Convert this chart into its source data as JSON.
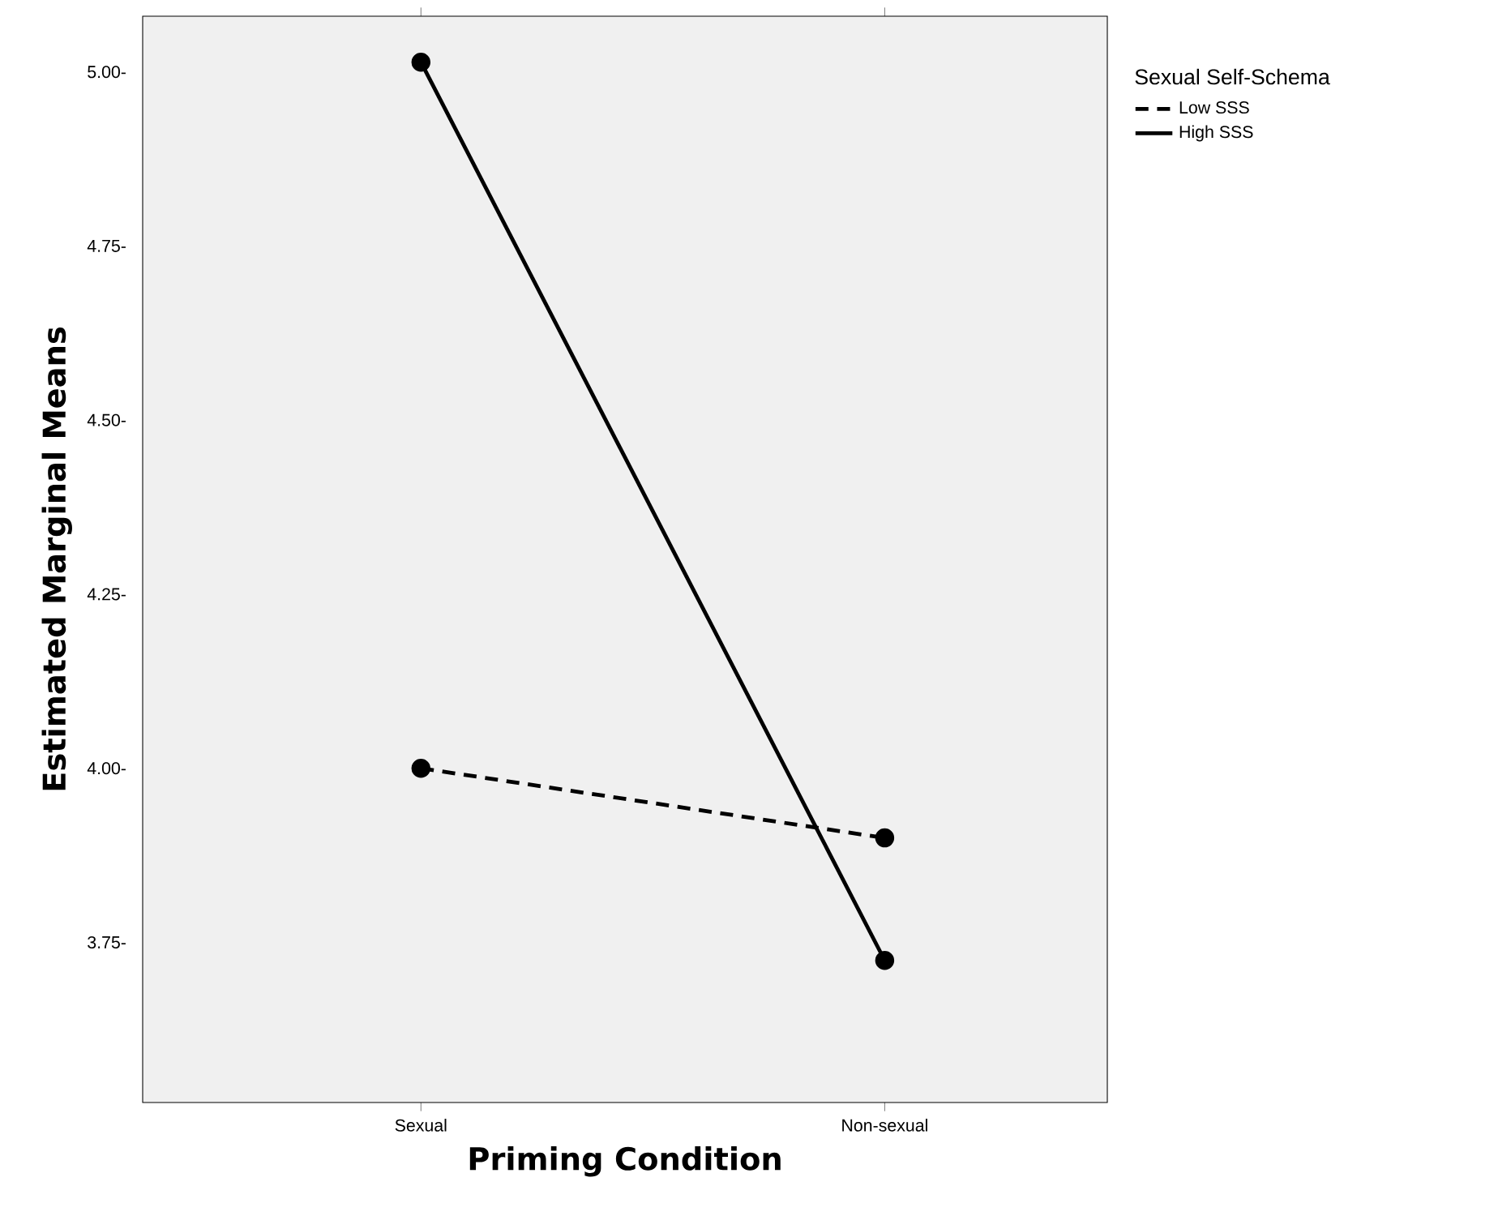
{
  "chart_data": {
    "type": "line",
    "xlabel": "Priming Condition",
    "ylabel": "Estimated Marginal Means",
    "legend_title": "Sexual Self-Schema",
    "categories": [
      "Sexual",
      "Non-sexual"
    ],
    "series": [
      {
        "name": "Low SSS",
        "color": "#000000",
        "values": [
          4.0,
          3.9
        ],
        "line_style": "dashed"
      },
      {
        "name": "High SSS",
        "color": "#000000",
        "values": [
          5.014,
          3.724
        ],
        "line_style": "solid"
      }
    ],
    "ylim": [
      3.52,
      5.08
    ],
    "yticks": [
      {
        "value": 3.75,
        "label": "3.75-"
      },
      {
        "value": 4.0,
        "label": "4.00-"
      },
      {
        "value": 4.25,
        "label": "4.25-"
      },
      {
        "value": 4.5,
        "label": "4.50-"
      },
      {
        "value": 4.75,
        "label": "4.75-"
      },
      {
        "value": 5.0,
        "label": "5.00-"
      }
    ],
    "marker": "circle",
    "legend": "top right",
    "grid": false
  }
}
